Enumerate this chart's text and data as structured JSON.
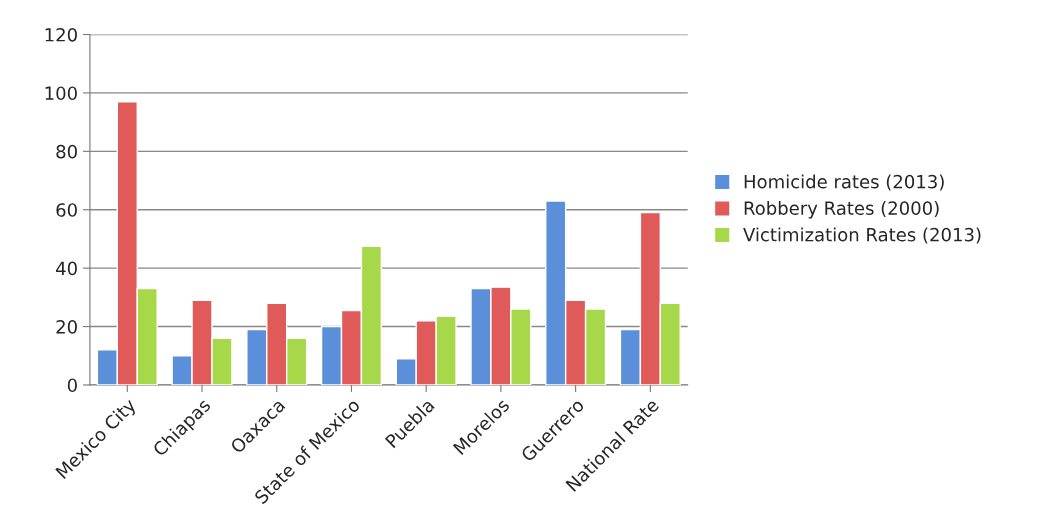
{
  "chart_data": {
    "type": "bar",
    "categories": [
      "Mexico City",
      "Chiapas",
      "Oaxaca",
      "State of Mexico",
      "Puebla",
      "Morelos",
      "Guerrero",
      "National Rate"
    ],
    "series": [
      {
        "name": "Homicide rates (2013)",
        "color": "#5b8fd9",
        "values": [
          12,
          10,
          19,
          20,
          9,
          33,
          63,
          19
        ]
      },
      {
        "name": "Robbery Rates (2000)",
        "color": "#e05a5a",
        "values": [
          97,
          29,
          28,
          25.5,
          22,
          33.5,
          29,
          59
        ]
      },
      {
        "name": "Victimization Rates (2013)",
        "color": "#a6d84a",
        "values": [
          33,
          16,
          16,
          47.5,
          23.5,
          26,
          26,
          28
        ]
      }
    ],
    "ylim": [
      0,
      120
    ],
    "yticks": [
      0,
      20,
      40,
      60,
      80,
      100,
      120
    ],
    "grid": "y",
    "legend": "right"
  }
}
